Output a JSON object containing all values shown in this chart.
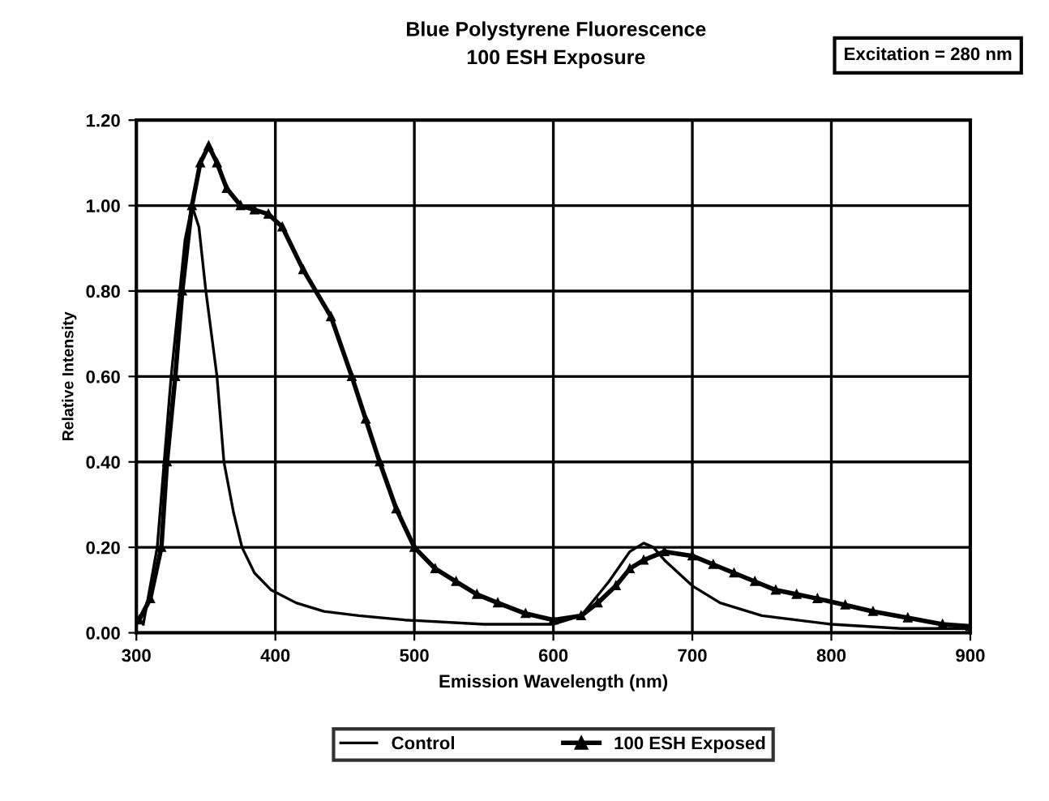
{
  "chart_data": {
    "type": "line",
    "title": "Blue Polystyrene Fluorescence",
    "subtitle": "100 ESH Exposure",
    "xlabel": "Emission Wavelength (nm)",
    "ylabel": "Relative Intensity",
    "annotations": [
      "Excitation = 280 nm"
    ],
    "xlim": [
      300,
      900
    ],
    "xticks": [
      300,
      400,
      500,
      600,
      700,
      800,
      900
    ],
    "ylim": [
      0,
      1.2
    ],
    "yticks": [
      {
        "value": 0,
        "label": "0.00"
      },
      {
        "value": 0.2,
        "label": "0.20"
      },
      {
        "value": 0.4,
        "label": "0.40"
      },
      {
        "value": 0.6,
        "label": "0.60"
      },
      {
        "value": 0.8,
        "label": "0.80"
      },
      {
        "value": 1.0,
        "label": "1.00"
      },
      {
        "value": 1.2,
        "label": "1.20"
      }
    ],
    "grid": true,
    "legend": "bottom",
    "series": [
      {
        "name": "Control",
        "color": "#000000",
        "marker": "none",
        "x": [
          305,
          315,
          325,
          335,
          340,
          345,
          350,
          358,
          363,
          370,
          376,
          385,
          397,
          415,
          435,
          460,
          493,
          550,
          600,
          620,
          640,
          655,
          665,
          672,
          680,
          690,
          700,
          720,
          750,
          800,
          850,
          900
        ],
        "values": [
          0.02,
          0.2,
          0.6,
          0.92,
          1.0,
          0.95,
          0.8,
          0.6,
          0.4,
          0.28,
          0.2,
          0.14,
          0.1,
          0.07,
          0.05,
          0.04,
          0.03,
          0.02,
          0.02,
          0.04,
          0.12,
          0.19,
          0.21,
          0.2,
          0.17,
          0.14,
          0.11,
          0.07,
          0.04,
          0.02,
          0.01,
          0.01
        ]
      },
      {
        "name": "100 ESH Exposed",
        "color": "#000000",
        "marker": "triangle",
        "x": [
          302,
          310,
          318,
          322,
          328,
          333,
          340,
          346,
          352,
          358,
          365,
          375,
          385,
          395,
          405,
          420,
          440,
          455,
          465,
          475,
          487,
          500,
          515,
          530,
          545,
          560,
          580,
          600,
          620,
          632,
          645,
          655,
          665,
          680,
          700,
          715,
          730,
          745,
          760,
          775,
          790,
          810,
          830,
          855,
          880,
          900
        ],
        "values": [
          0.03,
          0.08,
          0.2,
          0.4,
          0.6,
          0.8,
          1.0,
          1.1,
          1.14,
          1.1,
          1.04,
          1.0,
          0.99,
          0.98,
          0.95,
          0.85,
          0.74,
          0.6,
          0.5,
          0.4,
          0.29,
          0.2,
          0.15,
          0.12,
          0.09,
          0.07,
          0.045,
          0.03,
          0.04,
          0.07,
          0.11,
          0.15,
          0.17,
          0.19,
          0.18,
          0.16,
          0.14,
          0.12,
          0.1,
          0.09,
          0.08,
          0.065,
          0.05,
          0.035,
          0.02,
          0.015
        ]
      }
    ]
  }
}
